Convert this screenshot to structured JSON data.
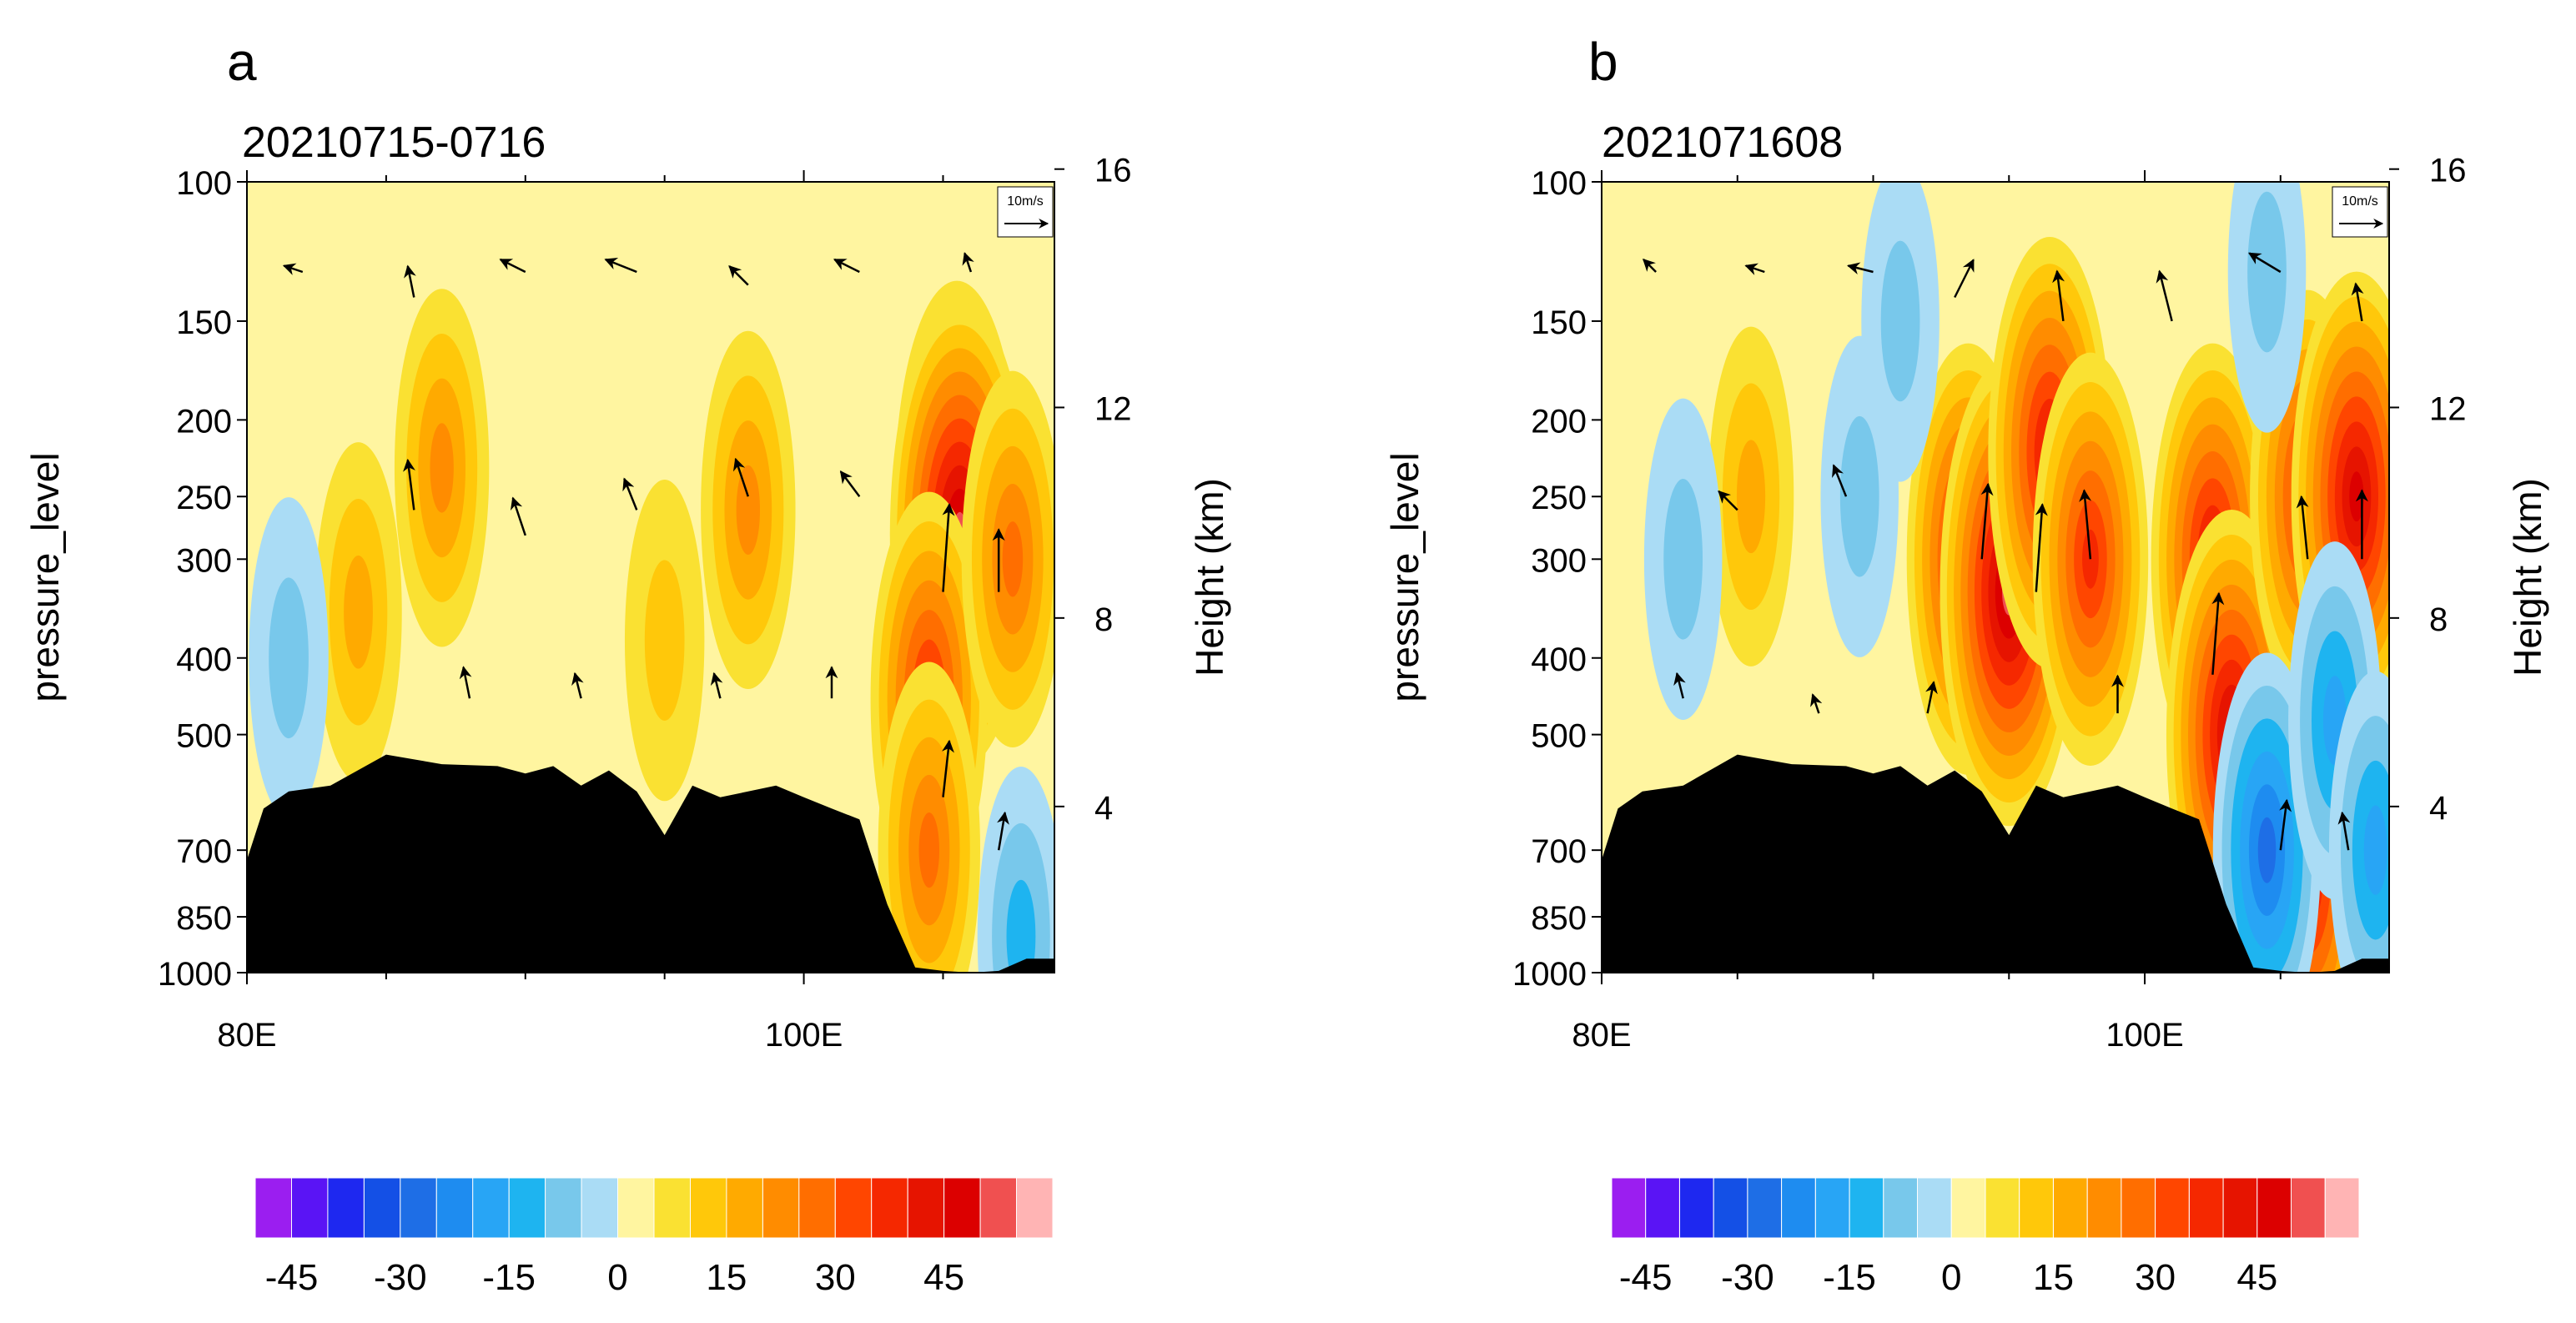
{
  "colors": {
    "negative_shades": [
      "#9b1ef0",
      "#5a14f5",
      "#1e28f0",
      "#1450e6",
      "#1e6ee6",
      "#1e8cf0",
      "#28a5f5",
      "#1eb4f0",
      "#78c8eb",
      "#aadcf5"
    ],
    "positive_shades": [
      "#fff5a0",
      "#fae132",
      "#ffc80a",
      "#ffaa00",
      "#ff8c00",
      "#ff6e00",
      "#ff4600",
      "#f52800",
      "#e61400",
      "#dc0000",
      "#f05050",
      "#ffb4b4"
    ],
    "terrain": "#000000",
    "background_field": "#fff5a0"
  },
  "chart_data": [
    {
      "panel_label": "a",
      "title": "20210715-0716",
      "type": "contour-section",
      "ylabel": "pressure_level",
      "ylabel_right": "Height (km)",
      "x_tick_labels": [
        "80E",
        "100E"
      ],
      "x_ticks": [
        80,
        100
      ],
      "xlim": [
        80,
        109
      ],
      "y_tick_labels": [
        "100",
        "150",
        "200",
        "250",
        "300",
        "400",
        "500",
        "700",
        "850",
        "1000"
      ],
      "y_ticks": [
        100,
        150,
        200,
        250,
        300,
        400,
        500,
        700,
        850,
        1000
      ],
      "ylim": [
        1000,
        100
      ],
      "y_right_tick_labels": [
        "16",
        "12",
        "8",
        "4"
      ],
      "y_right_ticks": [
        16,
        12,
        8,
        4
      ],
      "vector_reference": "10m/s",
      "colorbar_ticks": [
        -45,
        -30,
        -15,
        0,
        15,
        30,
        45
      ],
      "colorbar_tick_labels": [
        "-45",
        "-30",
        "-15",
        "0",
        "15",
        "30",
        "45"
      ],
      "terrain_profile": [
        [
          80,
          720
        ],
        [
          80.6,
          620
        ],
        [
          81.5,
          590
        ],
        [
          83,
          580
        ],
        [
          85,
          530
        ],
        [
          87,
          545
        ],
        [
          89,
          548
        ],
        [
          90,
          560
        ],
        [
          91,
          548
        ],
        [
          92,
          580
        ],
        [
          93,
          555
        ],
        [
          94,
          590
        ],
        [
          95,
          670
        ],
        [
          96,
          580
        ],
        [
          97,
          600
        ],
        [
          98,
          590
        ],
        [
          99,
          580
        ],
        [
          100,
          600
        ],
        [
          101,
          620
        ],
        [
          102,
          640
        ],
        [
          103,
          820
        ],
        [
          104,
          985
        ],
        [
          105,
          995
        ],
        [
          106,
          1000
        ],
        [
          107,
          995
        ],
        [
          108,
          960
        ],
        [
          109,
          960
        ]
      ],
      "anomaly_blobs": [
        {
          "lon": 87,
          "p": 230,
          "value": 20
        },
        {
          "lon": 84,
          "p": 350,
          "value": 15
        },
        {
          "lon": 98,
          "p": 260,
          "value": 20
        },
        {
          "lon": 95,
          "p": 380,
          "value": 10
        },
        {
          "lon": 105.5,
          "p": 250,
          "value": 40
        },
        {
          "lon": 105.6,
          "p": 280,
          "value": 50
        },
        {
          "lon": 104.5,
          "p": 450,
          "value": 35
        },
        {
          "lon": 104.5,
          "p": 700,
          "value": 25
        },
        {
          "lon": 107.5,
          "p": 300,
          "value": 25
        },
        {
          "lon": 81.5,
          "p": 400,
          "value": -10
        },
        {
          "lon": 107.8,
          "p": 900,
          "value": -15
        }
      ],
      "vectors": [
        {
          "lon": 82,
          "p": 130,
          "u": -3,
          "w": 1
        },
        {
          "lon": 86,
          "p": 140,
          "u": -1,
          "w": 5
        },
        {
          "lon": 90,
          "p": 130,
          "u": -4,
          "w": 2
        },
        {
          "lon": 94,
          "p": 130,
          "u": -5,
          "w": 2
        },
        {
          "lon": 98,
          "p": 135,
          "u": -3,
          "w": 3
        },
        {
          "lon": 102,
          "p": 130,
          "u": -4,
          "w": 2
        },
        {
          "lon": 106,
          "p": 130,
          "u": -1,
          "w": 3
        },
        {
          "lon": 86,
          "p": 260,
          "u": -1,
          "w": 8
        },
        {
          "lon": 90,
          "p": 280,
          "u": -2,
          "w": 6
        },
        {
          "lon": 94,
          "p": 260,
          "u": -2,
          "w": 5
        },
        {
          "lon": 98,
          "p": 250,
          "u": -2,
          "w": 6
        },
        {
          "lon": 102,
          "p": 250,
          "u": -3,
          "w": 4
        },
        {
          "lon": 105,
          "p": 330,
          "u": 1,
          "w": 14
        },
        {
          "lon": 107,
          "p": 330,
          "u": 0,
          "w": 10
        },
        {
          "lon": 88,
          "p": 450,
          "u": -1,
          "w": 5
        },
        {
          "lon": 92,
          "p": 450,
          "u": -1,
          "w": 4
        },
        {
          "lon": 97,
          "p": 450,
          "u": -1,
          "w": 4
        },
        {
          "lon": 101,
          "p": 450,
          "u": 0,
          "w": 5
        },
        {
          "lon": 105,
          "p": 600,
          "u": 1,
          "w": 9
        },
        {
          "lon": 107,
          "p": 700,
          "u": 1,
          "w": 6
        }
      ]
    },
    {
      "panel_label": "b",
      "title": "2021071608",
      "type": "contour-section",
      "ylabel": "pressure_level",
      "ylabel_right": "Height (km)",
      "x_tick_labels": [
        "80E",
        "100E"
      ],
      "x_ticks": [
        80,
        100
      ],
      "xlim": [
        80,
        109
      ],
      "y_tick_labels": [
        "100",
        "150",
        "200",
        "250",
        "300",
        "400",
        "500",
        "700",
        "850",
        "1000"
      ],
      "y_ticks": [
        100,
        150,
        200,
        250,
        300,
        400,
        500,
        700,
        850,
        1000
      ],
      "ylim": [
        1000,
        100
      ],
      "y_right_tick_labels": [
        "16",
        "12",
        "8",
        "4"
      ],
      "y_right_ticks": [
        16,
        12,
        8,
        4
      ],
      "vector_reference": "10m/s",
      "colorbar_ticks": [
        -45,
        -30,
        -15,
        0,
        15,
        30,
        45
      ],
      "colorbar_tick_labels": [
        "-45",
        "-30",
        "-15",
        "0",
        "15",
        "30",
        "45"
      ],
      "terrain_profile": [
        [
          80,
          720
        ],
        [
          80.6,
          620
        ],
        [
          81.5,
          590
        ],
        [
          83,
          580
        ],
        [
          85,
          530
        ],
        [
          87,
          545
        ],
        [
          89,
          548
        ],
        [
          90,
          560
        ],
        [
          91,
          548
        ],
        [
          92,
          580
        ],
        [
          93,
          555
        ],
        [
          94,
          590
        ],
        [
          95,
          670
        ],
        [
          96,
          580
        ],
        [
          97,
          600
        ],
        [
          98,
          590
        ],
        [
          99,
          580
        ],
        [
          100,
          600
        ],
        [
          101,
          620
        ],
        [
          102,
          640
        ],
        [
          103,
          820
        ],
        [
          104,
          985
        ],
        [
          105,
          995
        ],
        [
          106,
          1000
        ],
        [
          107,
          995
        ],
        [
          108,
          960
        ],
        [
          109,
          960
        ]
      ],
      "anomaly_blobs": [
        {
          "lon": 93.5,
          "p": 300,
          "value": 40
        },
        {
          "lon": 95,
          "p": 330,
          "value": 50
        },
        {
          "lon": 96.5,
          "p": 220,
          "value": 40
        },
        {
          "lon": 98,
          "p": 300,
          "value": 35
        },
        {
          "lon": 102.5,
          "p": 300,
          "value": 40
        },
        {
          "lon": 103.2,
          "p": 500,
          "value": 45
        },
        {
          "lon": 106,
          "p": 250,
          "value": 35
        },
        {
          "lon": 107.8,
          "p": 250,
          "value": 45
        },
        {
          "lon": 106,
          "p": 750,
          "value": 40
        },
        {
          "lon": 85.5,
          "p": 250,
          "value": 15
        },
        {
          "lon": 83,
          "p": 300,
          "value": -10
        },
        {
          "lon": 89.5,
          "p": 250,
          "value": -10
        },
        {
          "lon": 91,
          "p": 150,
          "value": -10
        },
        {
          "lon": 104.5,
          "p": 130,
          "value": -10
        },
        {
          "lon": 104.5,
          "p": 700,
          "value": -30
        },
        {
          "lon": 107,
          "p": 480,
          "value": -20
        },
        {
          "lon": 108.5,
          "p": 700,
          "value": -20
        }
      ],
      "vectors": [
        {
          "lon": 82,
          "p": 130,
          "u": -2,
          "w": 2
        },
        {
          "lon": 86,
          "p": 130,
          "u": -3,
          "w": 1
        },
        {
          "lon": 90,
          "p": 130,
          "u": -4,
          "w": 1
        },
        {
          "lon": 93,
          "p": 140,
          "u": 3,
          "w": 6
        },
        {
          "lon": 97,
          "p": 150,
          "u": -1,
          "w": 8
        },
        {
          "lon": 101,
          "p": 150,
          "u": -2,
          "w": 8
        },
        {
          "lon": 105,
          "p": 130,
          "u": -5,
          "w": 3
        },
        {
          "lon": 108,
          "p": 150,
          "u": -1,
          "w": 6
        },
        {
          "lon": 85,
          "p": 260,
          "u": -3,
          "w": 3
        },
        {
          "lon": 89,
          "p": 250,
          "u": -2,
          "w": 5
        },
        {
          "lon": 94,
          "p": 300,
          "u": 1,
          "w": 12
        },
        {
          "lon": 96,
          "p": 330,
          "u": 1,
          "w": 14
        },
        {
          "lon": 98,
          "p": 300,
          "u": -1,
          "w": 11
        },
        {
          "lon": 102.5,
          "p": 420,
          "u": 1,
          "w": 13
        },
        {
          "lon": 106,
          "p": 300,
          "u": -1,
          "w": 10
        },
        {
          "lon": 108,
          "p": 300,
          "u": 0,
          "w": 11
        },
        {
          "lon": 83,
          "p": 450,
          "u": -1,
          "w": 4
        },
        {
          "lon": 88,
          "p": 470,
          "u": -1,
          "w": 3
        },
        {
          "lon": 92,
          "p": 470,
          "u": 1,
          "w": 5
        },
        {
          "lon": 99,
          "p": 470,
          "u": 0,
          "w": 6
        },
        {
          "lon": 105,
          "p": 700,
          "u": 1,
          "w": 8
        },
        {
          "lon": 107.5,
          "p": 700,
          "u": -1,
          "w": 6
        }
      ]
    }
  ]
}
